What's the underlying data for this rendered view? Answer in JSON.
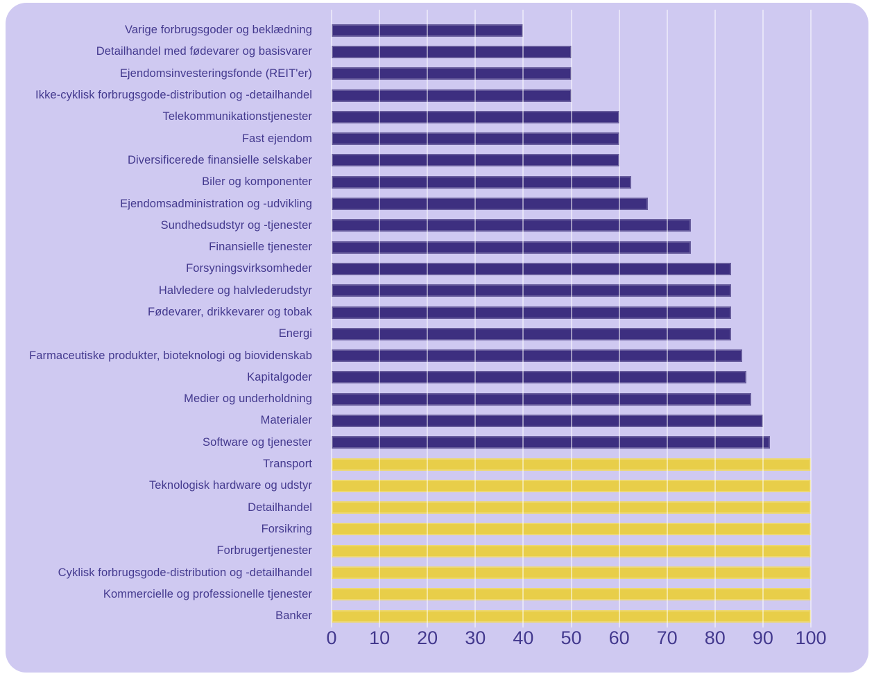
{
  "page": {
    "background": "#ffffff",
    "card_background": "#CFC9F1"
  },
  "colors": {
    "bar_purple": "#3D2F80",
    "bar_yellow": "#E8CE49",
    "text": "#43398E",
    "gridline": "rgba(255,255,255,0.5)"
  },
  "chart_data": {
    "type": "bar",
    "orientation": "horizontal",
    "title": "",
    "xlabel": "",
    "ylabel": "",
    "xlim": [
      0,
      100
    ],
    "x_ticks": [
      0,
      10,
      20,
      30,
      40,
      50,
      60,
      70,
      80,
      90,
      100
    ],
    "grid": true,
    "legend": "none",
    "categories": [
      "Varige forbrugsgoder og beklædning",
      "Detailhandel med fødevarer og basisvarer",
      "Ejendomsinvesteringsfonde (REIT'er)",
      "Ikke-cyklisk forbrugsgode-distribution og -detailhandel",
      "Telekommunikationstjenester",
      "Fast ejendom",
      "Diversificerede finansielle selskaber",
      "Biler og komponenter",
      "Ejendomsadministration og -udvikling",
      "Sundhedsudstyr og -tjenester",
      "Finansielle tjenester",
      "Forsyningsvirksomheder",
      "Halvledere og halvlederudstyr",
      "Fødevarer, drikkevarer og tobak",
      "Energi",
      "Farmaceutiske produkter, bioteknologi og biovidenskab",
      "Kapitalgoder",
      "Medier og underholdning",
      "Materialer",
      "Software og tjenester",
      "Transport",
      "Teknologisk hardware og udstyr",
      "Detailhandel",
      "Forsikring",
      "Forbrugertjenester",
      "Cyklisk forbrugsgode-distribution og -detailhandel",
      "Kommercielle og professionelle tjenester",
      "Banker"
    ],
    "values": [
      40,
      50,
      50,
      50,
      60,
      60,
      60,
      62.5,
      66,
      75,
      75,
      83.3,
      83.3,
      83.3,
      83.3,
      85.7,
      86.5,
      87.5,
      90,
      91.5,
      100,
      100,
      100,
      100,
      100,
      100,
      100,
      100
    ],
    "bar_colors": [
      "#3D2F80",
      "#3D2F80",
      "#3D2F80",
      "#3D2F80",
      "#3D2F80",
      "#3D2F80",
      "#3D2F80",
      "#3D2F80",
      "#3D2F80",
      "#3D2F80",
      "#3D2F80",
      "#3D2F80",
      "#3D2F80",
      "#3D2F80",
      "#3D2F80",
      "#3D2F80",
      "#3D2F80",
      "#3D2F80",
      "#3D2F80",
      "#3D2F80",
      "#E8CE49",
      "#E8CE49",
      "#E8CE49",
      "#E8CE49",
      "#E8CE49",
      "#E8CE49",
      "#E8CE49",
      "#E8CE49"
    ]
  }
}
